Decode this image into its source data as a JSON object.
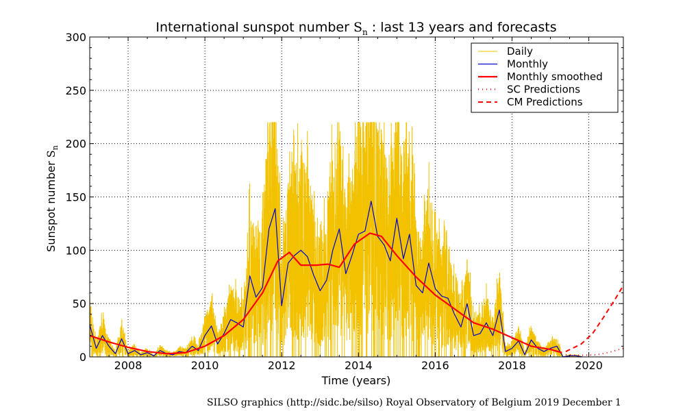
{
  "chart_data": {
    "type": "line",
    "title_main": "International sunspot number ",
    "title_symbol": "S",
    "title_sub": "n",
    "title_rest": " : last 13 years and forecasts",
    "xlabel": "Time (years)",
    "ylabel_main": "Sunspot number ",
    "ylabel_symbol": "S",
    "ylabel_sub": "n",
    "xlim": [
      2007.0,
      2020.9
    ],
    "ylim": [
      0,
      300
    ],
    "x_ticks": [
      2008,
      2010,
      2012,
      2014,
      2016,
      2018,
      2020
    ],
    "x_tick_labels": [
      "2008",
      "2010",
      "2012",
      "2014",
      "2016",
      "2018",
      "2020"
    ],
    "y_ticks": [
      0,
      50,
      100,
      150,
      200,
      250,
      300
    ],
    "y_tick_labels": [
      "0",
      "50",
      "100",
      "150",
      "200",
      "250",
      "300"
    ],
    "grid": true,
    "legend_position": "top-right",
    "series": [
      {
        "name": "Daily",
        "color": "#f2c200",
        "style": "solid"
      },
      {
        "name": "Monthly",
        "color": "#0000cc",
        "style": "solid"
      },
      {
        "name": "Monthly smoothed",
        "color": "#ff0000",
        "style": "solid-thick"
      },
      {
        "name": "SC Predictions",
        "color": "#ff0000",
        "style": "dotted"
      },
      {
        "name": "CM Predictions",
        "color": "#ff0000",
        "style": "dashed"
      }
    ],
    "monthly": {
      "x": [
        2007.0,
        2007.17,
        2007.33,
        2007.5,
        2007.67,
        2007.83,
        2008.0,
        2008.17,
        2008.33,
        2008.5,
        2008.67,
        2008.83,
        2009.0,
        2009.17,
        2009.33,
        2009.5,
        2009.67,
        2009.83,
        2010.0,
        2010.17,
        2010.33,
        2010.5,
        2010.67,
        2010.83,
        2011.0,
        2011.17,
        2011.33,
        2011.5,
        2011.67,
        2011.83,
        2012.0,
        2012.17,
        2012.33,
        2012.5,
        2012.67,
        2012.83,
        2013.0,
        2013.17,
        2013.33,
        2013.5,
        2013.67,
        2013.83,
        2014.0,
        2014.17,
        2014.33,
        2014.5,
        2014.67,
        2014.83,
        2015.0,
        2015.17,
        2015.33,
        2015.5,
        2015.67,
        2015.83,
        2016.0,
        2016.17,
        2016.33,
        2016.5,
        2016.67,
        2016.83,
        2017.0,
        2017.17,
        2017.33,
        2017.5,
        2017.67,
        2017.83,
        2018.0,
        2018.17,
        2018.33,
        2018.5,
        2018.67,
        2018.83,
        2019.0,
        2019.17,
        2019.33,
        2019.5,
        2019.67,
        2019.83
      ],
      "y": [
        30,
        8,
        20,
        10,
        3,
        17,
        3,
        6,
        2,
        4,
        1,
        6,
        3,
        2,
        5,
        4,
        10,
        6,
        20,
        29,
        12,
        22,
        35,
        32,
        28,
        76,
        56,
        65,
        120,
        139,
        48,
        88,
        95,
        100,
        94,
        77,
        62,
        72,
        100,
        120,
        78,
        95,
        115,
        118,
        146,
        113,
        105,
        90,
        130,
        92,
        115,
        67,
        60,
        88,
        64,
        57,
        55,
        40,
        28,
        50,
        20,
        22,
        32,
        20,
        44,
        5,
        8,
        15,
        2,
        16,
        8,
        5,
        8,
        10,
        0,
        1,
        1,
        0
      ]
    },
    "smoothed": {
      "x": [
        2007.0,
        2007.5,
        2008.0,
        2008.5,
        2009.0,
        2009.5,
        2010.0,
        2010.5,
        2011.0,
        2011.5,
        2011.9,
        2012.2,
        2012.5,
        2012.9,
        2013.2,
        2013.5,
        2013.9,
        2014.3,
        2014.6,
        2015.0,
        2015.5,
        2016.0,
        2016.5,
        2017.0,
        2017.5,
        2018.0,
        2018.5,
        2019.0,
        2019.3
      ],
      "y": [
        20,
        14,
        9,
        5,
        3,
        4,
        10,
        20,
        35,
        60,
        90,
        98,
        86,
        86,
        87,
        84,
        106,
        116,
        113,
        95,
        75,
        58,
        45,
        32,
        26,
        18,
        10,
        7,
        4
      ]
    },
    "sc_predictions": {
      "x": [
        2019.4,
        2019.8,
        2020.2,
        2020.5,
        2020.9
      ],
      "y": [
        2,
        1.5,
        2,
        4,
        8
      ]
    },
    "cm_predictions": {
      "x": [
        2019.4,
        2019.8,
        2020.1,
        2020.4,
        2020.7,
        2020.9
      ],
      "y": [
        5,
        12,
        22,
        38,
        55,
        67
      ]
    }
  },
  "footer": "SILSO graphics (http://sidc.be/silso)  Royal Observatory of Belgium  2019 December 1"
}
